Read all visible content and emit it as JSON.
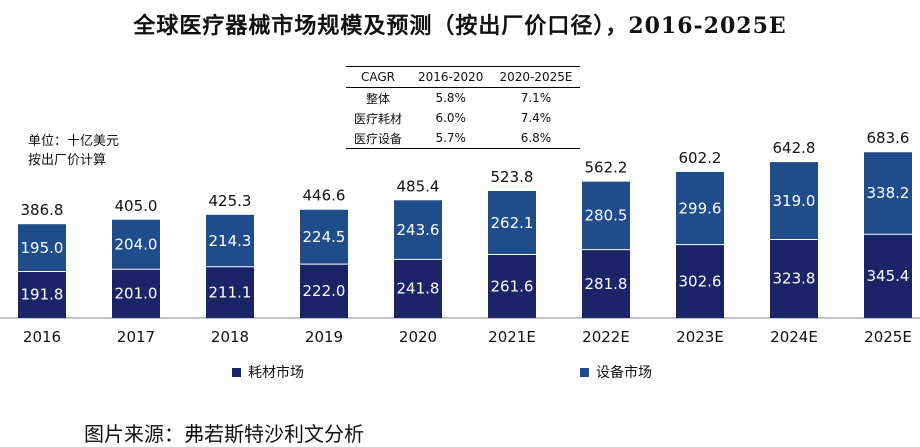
{
  "title": "全球医疗器械市场规模及预测（按出厂价口径），2016-2025E",
  "unit": {
    "line1": "单位：十亿美元",
    "line2": "按出厂价计算"
  },
  "cagr_table": {
    "headers": [
      "CAGR",
      "2016-2020",
      "2020-2025E"
    ],
    "rows": [
      [
        "整体",
        "5.8%",
        "7.1%"
      ],
      [
        "医疗耗材",
        "6.0%",
        "7.4%"
      ],
      [
        "医疗设备",
        "5.7%",
        "6.8%"
      ]
    ]
  },
  "source": "图片来源：弗若斯特沙利文分析",
  "colors": {
    "consumables": "#1b2466",
    "equipment": "#1f4d8c",
    "axis": "#888888"
  },
  "chart_data": {
    "type": "bar",
    "stacked": true,
    "categories": [
      "2016",
      "2017",
      "2018",
      "2019",
      "2020",
      "2021E",
      "2022E",
      "2023E",
      "2024E",
      "2025E"
    ],
    "series": [
      {
        "name": "耗材市场",
        "values": [
          191.8,
          201.0,
          211.1,
          222.0,
          241.8,
          261.6,
          281.8,
          302.6,
          323.8,
          345.4
        ]
      },
      {
        "name": "设备市场",
        "values": [
          195.0,
          204.0,
          214.3,
          224.5,
          243.6,
          262.1,
          280.5,
          299.6,
          319.0,
          338.2
        ]
      }
    ],
    "totals": [
      386.8,
      405.0,
      425.3,
      446.6,
      485.4,
      523.8,
      562.2,
      602.2,
      642.8,
      683.6
    ],
    "ylim": [
      0,
      700
    ],
    "legend_position": "bottom"
  }
}
